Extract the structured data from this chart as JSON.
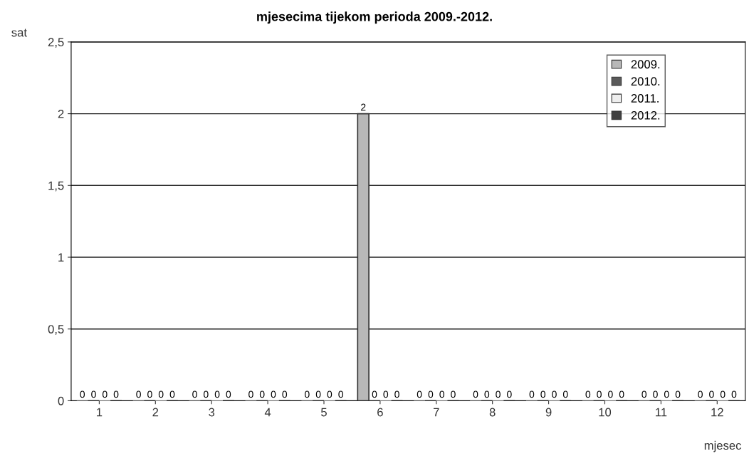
{
  "chart_data": {
    "type": "bar",
    "title": "mjesecima tijekom perioda 2009.-2012.",
    "xlabel": "mjesec",
    "ylabel": "sat",
    "categories": [
      "1",
      "2",
      "3",
      "4",
      "5",
      "6",
      "7",
      "8",
      "9",
      "10",
      "11",
      "12"
    ],
    "series": [
      {
        "name": "2009.",
        "color": "#b8b8b8",
        "values": [
          0,
          0,
          0,
          0,
          0,
          2,
          0,
          0,
          0,
          0,
          0,
          0
        ]
      },
      {
        "name": "2010.",
        "color": "#5a5a5a",
        "values": [
          0,
          0,
          0,
          0,
          0,
          0,
          0,
          0,
          0,
          0,
          0,
          0
        ]
      },
      {
        "name": "2011.",
        "color": "#eeeeee",
        "values": [
          0,
          0,
          0,
          0,
          0,
          0,
          0,
          0,
          0,
          0,
          0,
          0
        ]
      },
      {
        "name": "2012.",
        "color": "#404040",
        "values": [
          0,
          0,
          0,
          0,
          0,
          0,
          0,
          0,
          0,
          0,
          0,
          0
        ]
      }
    ],
    "ylim": [
      0,
      2.5
    ],
    "yticks": [
      0,
      {
        "value": 0.5,
        "label": "0,5"
      },
      1,
      {
        "value": 1.5,
        "label": "1,5"
      },
      2,
      {
        "value": 2.5,
        "label": "2,5"
      }
    ],
    "grid": "y",
    "legend": "top right",
    "data_labels": true
  }
}
